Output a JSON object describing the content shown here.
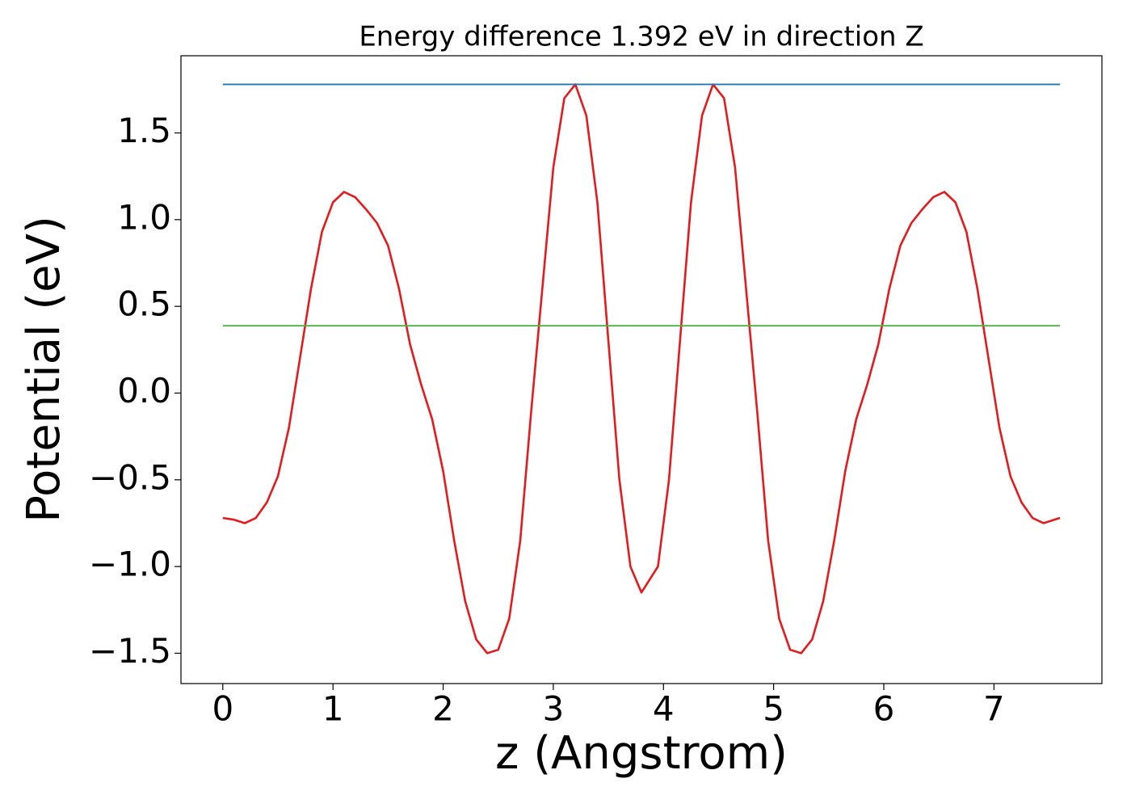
{
  "chart_data": {
    "type": "line",
    "title": "Energy difference 1.392 eV in direction Z",
    "xlabel": "z (Angstrom)",
    "ylabel": "Potential (eV)",
    "xlim": [
      -0.38,
      7.98
    ],
    "ylim": [
      -1.675,
      1.945
    ],
    "xticks": [
      0,
      1,
      2,
      3,
      4,
      5,
      6,
      7
    ],
    "yticks": [
      {
        "value": -1.5,
        "label": "−1.5"
      },
      {
        "value": -1.0,
        "label": "−1.0"
      },
      {
        "value": -0.5,
        "label": "−0.5"
      },
      {
        "value": 0.0,
        "label": "0.0"
      },
      0.5,
      {
        "value": 1.0,
        "label": "1.0"
      },
      1.5
    ],
    "series": [
      {
        "color": "#e41a1c",
        "x": [
          0,
          0.1,
          0.2,
          0.3,
          0.4,
          0.5,
          0.6,
          0.7,
          0.8,
          0.9,
          1.0,
          1.1,
          1.2,
          1.3,
          1.4,
          1.5,
          1.6,
          1.7,
          1.8,
          1.9,
          2.0,
          2.1,
          2.2,
          2.3,
          2.4,
          2.5,
          2.6,
          2.7,
          2.8,
          2.9,
          3.0,
          3.1,
          3.2,
          3.3,
          3.4,
          3.5,
          3.6,
          3.7,
          3.8,
          3.95,
          4.05,
          4.15,
          4.25,
          4.35,
          4.45,
          4.55,
          4.65,
          4.75,
          4.85,
          4.95,
          5.05,
          5.15,
          5.25,
          5.35,
          5.45,
          5.55,
          5.65,
          5.75,
          5.85,
          5.95,
          6.05,
          6.15,
          6.25,
          6.35,
          6.45,
          6.55,
          6.65,
          6.75,
          6.85,
          6.95,
          7.05,
          7.15,
          7.25,
          7.35,
          7.45,
          7.55,
          7.6
        ],
        "values": [
          -0.72,
          -0.73,
          -0.75,
          -0.72,
          -0.63,
          -0.48,
          -0.2,
          0.2,
          0.6,
          0.93,
          1.1,
          1.16,
          1.13,
          1.06,
          0.98,
          0.85,
          0.6,
          0.28,
          0.05,
          -0.15,
          -0.45,
          -0.85,
          -1.2,
          -1.42,
          -1.5,
          -1.48,
          -1.3,
          -0.85,
          -0.1,
          0.6,
          1.3,
          1.7,
          1.78,
          1.6,
          1.1,
          0.3,
          -0.5,
          -1.0,
          -1.15,
          -1.0,
          -0.5,
          0.3,
          1.1,
          1.6,
          1.78,
          1.7,
          1.3,
          0.6,
          -0.1,
          -0.85,
          -1.3,
          -1.48,
          -1.5,
          -1.42,
          -1.2,
          -0.85,
          -0.45,
          -0.15,
          0.05,
          0.28,
          0.6,
          0.85,
          0.98,
          1.06,
          1.13,
          1.16,
          1.1,
          0.93,
          0.6,
          0.2,
          -0.2,
          -0.48,
          -0.63,
          -0.72,
          -0.75,
          -0.73,
          -0.72
        ]
      },
      {
        "color": "#1f77b4",
        "x": [
          0,
          7.6
        ],
        "values": [
          1.78,
          1.78
        ]
      },
      {
        "color": "#4daf4a",
        "x": [
          0,
          7.6
        ],
        "values": [
          0.388,
          0.388
        ]
      }
    ]
  }
}
